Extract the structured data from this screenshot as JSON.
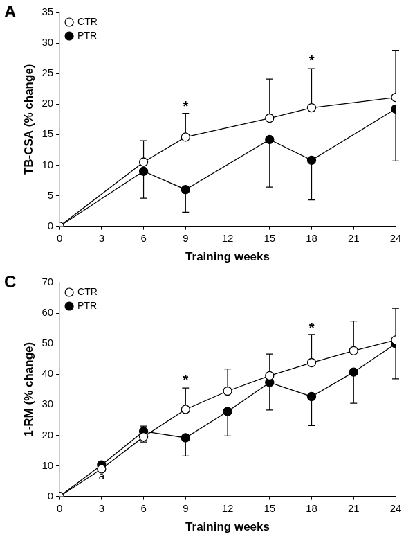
{
  "chart_data": [
    {
      "type": "line",
      "title": "A",
      "xlabel": "Training weeks",
      "ylabel": "TB-CSA (% change)",
      "x": [
        0,
        6,
        9,
        15,
        18,
        24
      ],
      "series": [
        {
          "name": "CTR",
          "color": "#ffffff",
          "marker": "circle",
          "line_style": "solid",
          "values": [
            0,
            10.5,
            14.6,
            17.7,
            19.4,
            21.1
          ],
          "error_plus": [
            null,
            3.5,
            3.9,
            6.4,
            6.4,
            7.7
          ]
        },
        {
          "name": "PTR",
          "color": "#000000",
          "marker": "circle",
          "line_style": "solid",
          "values": [
            0,
            9.0,
            6.0,
            14.2,
            10.8,
            19.2
          ],
          "error_minus": [
            null,
            4.4,
            3.7,
            7.8,
            6.5,
            8.5
          ]
        }
      ],
      "xlim": [
        0,
        24
      ],
      "xticks": [
        0,
        3,
        6,
        9,
        12,
        15,
        18,
        21,
        24
      ],
      "ylim": [
        0,
        35
      ],
      "yticks": [
        0,
        5,
        10,
        15,
        20,
        25,
        30,
        35
      ],
      "grid": false,
      "legend": "upper left",
      "annotations": [
        {
          "text": "*",
          "x": 9,
          "y": 19.5
        },
        {
          "text": "*",
          "x": 18,
          "y": 27
        }
      ]
    },
    {
      "type": "line",
      "title": "C",
      "xlabel": "Training weeks",
      "ylabel": "1-RM (% change)",
      "x": [
        0,
        3,
        6,
        9,
        12,
        15,
        18,
        21,
        24
      ],
      "series": [
        {
          "name": "CTR",
          "color": "#ffffff",
          "marker": "circle",
          "line_style": "solid",
          "values": [
            0,
            9.0,
            19.5,
            28.5,
            34.5,
            39.5,
            43.8,
            47.7,
            51.2
          ],
          "error_plus": [
            null,
            2.5,
            3.5,
            7.0,
            7.2,
            7.1,
            9.2,
            9.7,
            10.4
          ]
        },
        {
          "name": "PTR",
          "color": "#000000",
          "marker": "circle",
          "line_style": "solid",
          "values": [
            0,
            10.3,
            21.3,
            19.2,
            27.8,
            37.3,
            32.7,
            40.7,
            50.0
          ],
          "error_minus": [
            null,
            2.0,
            3.5,
            6.0,
            8.0,
            9.0,
            9.5,
            10.2,
            11.5
          ]
        }
      ],
      "xlim": [
        0,
        24
      ],
      "xticks": [
        0,
        3,
        6,
        9,
        12,
        15,
        18,
        21,
        24
      ],
      "ylim": [
        0,
        70
      ],
      "yticks": [
        0,
        10,
        20,
        30,
        40,
        50,
        60,
        70
      ],
      "grid": false,
      "legend": "upper left",
      "annotations": [
        {
          "text": "a",
          "x": 3,
          "y": 6.5
        },
        {
          "text": "*",
          "x": 9,
          "y": 38
        },
        {
          "text": "*",
          "x": 18,
          "y": 55
        }
      ]
    }
  ]
}
